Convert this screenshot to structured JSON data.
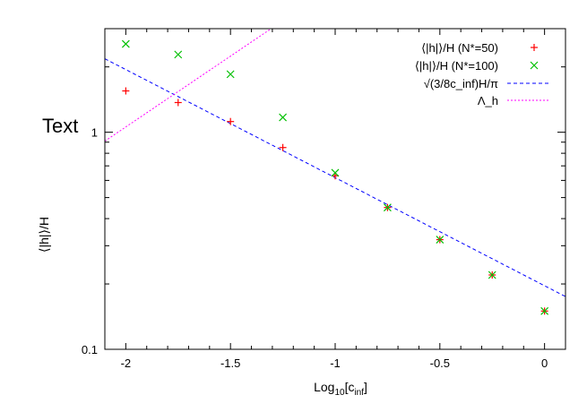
{
  "chart_data": {
    "type": "scatter",
    "overlay_text": "Text",
    "xlabel": "Log",
    "xlabel_sub": "10",
    "xlabel_bracket": "[c",
    "xlabel_bracket_sub": "inf",
    "xlabel_end": "]",
    "ylabel": "⟨|h|⟩/H",
    "xlim": [
      -2.1,
      0.1
    ],
    "ylim": [
      0.1,
      3.0
    ],
    "yscale": "log",
    "grid": false,
    "legend_position": "top-right",
    "x_ticks": [
      -2,
      -1.5,
      -1,
      -0.5,
      0
    ],
    "x_tick_labels": [
      "-2",
      "-1.5",
      "-1",
      "-0.5",
      "0"
    ],
    "y_ticks": [
      0.1,
      1
    ],
    "y_tick_labels": [
      "0.1",
      "1"
    ],
    "series": [
      {
        "name": "⟨|h|⟩/H (N*=50)",
        "marker": "plus",
        "color": "#ff0000",
        "x": [
          -2,
          -1.75,
          -1.5,
          -1.25,
          -1,
          -0.75,
          -0.5,
          -0.25,
          0
        ],
        "y": [
          1.55,
          1.37,
          1.12,
          0.85,
          0.63,
          0.45,
          0.32,
          0.22,
          0.15
        ]
      },
      {
        "name": "⟨|h|⟩/H (N*=100)",
        "marker": "cross",
        "color": "#00c000",
        "x": [
          -2,
          -1.75,
          -1.5,
          -1.25,
          -1,
          -0.75,
          -0.5,
          -0.25,
          0
        ],
        "y": [
          2.55,
          2.28,
          1.85,
          1.17,
          0.65,
          0.45,
          0.32,
          0.22,
          0.15
        ]
      },
      {
        "name": "√(3/8c_inf)H/π",
        "type": "line",
        "style": "dashed",
        "color": "#0000ff",
        "x": [
          -2.1,
          0.1
        ],
        "y": [
          2.18,
          0.175
        ]
      },
      {
        "name": "Λ_h",
        "type": "line",
        "style": "dotted",
        "color": "#ff00ff",
        "x": [
          -2.1,
          -1.0
        ],
        "y": [
          0.91,
          4.75
        ]
      }
    ]
  }
}
